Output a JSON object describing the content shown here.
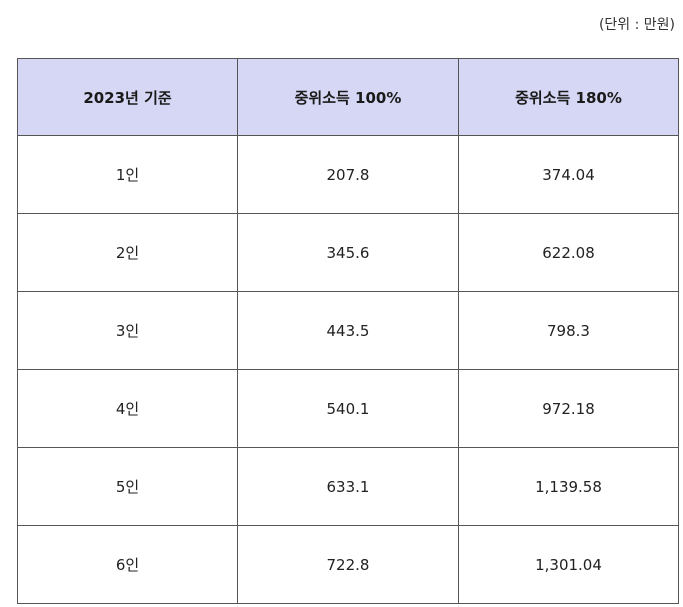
{
  "unit_note": "(단위 : 만원)",
  "table": {
    "headers": [
      "2023년 기준",
      "중위소득 100%",
      "중위소득 180%"
    ],
    "rows": [
      [
        "1인",
        "207.8",
        "374.04"
      ],
      [
        "2인",
        "345.6",
        "622.08"
      ],
      [
        "3인",
        "443.5",
        "798.3"
      ],
      [
        "4인",
        "540.1",
        "972.18"
      ],
      [
        "5인",
        "633.1",
        "1,139.58"
      ],
      [
        "6인",
        "722.8",
        "1,301.04"
      ]
    ]
  },
  "colors": {
    "header_bg": "#d6d7f4",
    "border": "#555555"
  }
}
